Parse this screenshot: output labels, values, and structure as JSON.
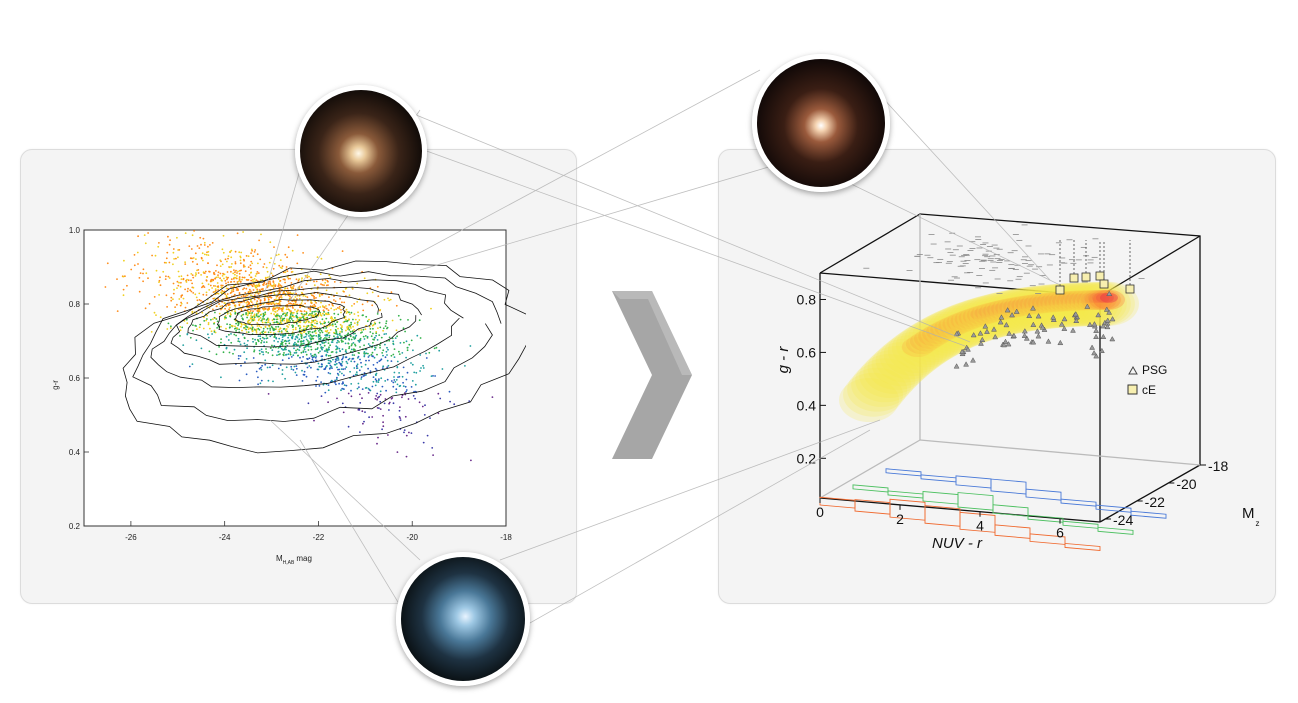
{
  "arrow": {
    "glyph": "chevron-right-icon",
    "color": "#a6a6a6"
  },
  "chart_data": [
    {
      "type": "scatter",
      "title": "",
      "xlabel_main": "M",
      "xlabel_sub": "H,AB",
      "xlabel_unit": "mag",
      "ylabel": "g-r",
      "xlim": [
        -27,
        -18
      ],
      "ylim": [
        0.2,
        1.0
      ],
      "x_ticks": [
        -26,
        -24,
        -22,
        -20,
        -18
      ],
      "x_tick_labels": [
        "-26",
        "-24",
        "-22",
        "-20",
        "-18"
      ],
      "y_ticks": [
        0.2,
        0.4,
        0.6,
        0.8,
        1.0
      ],
      "y_tick_labels": [
        "0.2",
        "0.4",
        "0.6",
        "0.8",
        "1.0"
      ],
      "grid": false,
      "point_colors": [
        "#ff8c1a",
        "#f0d020",
        "#33b24a",
        "#20a0a0",
        "#2a5cc0",
        "#3a3aa8",
        "#6a2a8a"
      ],
      "contour_levels": [
        {
          "cx": -22.9,
          "cy": 0.77,
          "rx": 0.9,
          "ry": 0.025
        },
        {
          "cx": -22.8,
          "cy": 0.765,
          "rx": 1.4,
          "ry": 0.045
        },
        {
          "cx": -22.7,
          "cy": 0.755,
          "rx": 2.0,
          "ry": 0.07
        },
        {
          "cx": -22.5,
          "cy": 0.74,
          "rx": 2.6,
          "ry": 0.1
        },
        {
          "cx": -22.3,
          "cy": 0.72,
          "rx": 3.2,
          "ry": 0.14
        },
        {
          "cx": -22.1,
          "cy": 0.69,
          "rx": 3.8,
          "ry": 0.19
        },
        {
          "cx": -21.9,
          "cy": 0.66,
          "rx": 4.3,
          "ry": 0.24
        }
      ]
    },
    {
      "type": "scatter",
      "title": "",
      "projection": "3d",
      "xlabel": "NUV - r",
      "ylabel": "g - r",
      "zlabel_main": "M",
      "zlabel_sub": "z",
      "x_ticks": [
        0,
        2,
        4,
        6
      ],
      "x_tick_labels": [
        "0",
        "2",
        "4",
        "6"
      ],
      "y_ticks": [
        0.2,
        0.4,
        0.6,
        0.8
      ],
      "y_tick_labels": [
        "0.2",
        "0.4",
        "0.6",
        "0.8"
      ],
      "z_ticks": [
        -18,
        -20,
        -22,
        -24
      ],
      "z_tick_labels": [
        "-18",
        "-20",
        "-22",
        "-24"
      ],
      "legend": [
        {
          "marker": "triangle",
          "label": "PSG"
        },
        {
          "marker": "cube",
          "label": "cE"
        }
      ],
      "legend_placement": "right",
      "density_colors": [
        "#f7e64a",
        "#ffb020",
        "#ff5a2a",
        "#e8204a"
      ],
      "histogram_colors": {
        "blue": "#4a7ad8",
        "green": "#4cc060",
        "orange": "#f06a30"
      }
    }
  ]
}
